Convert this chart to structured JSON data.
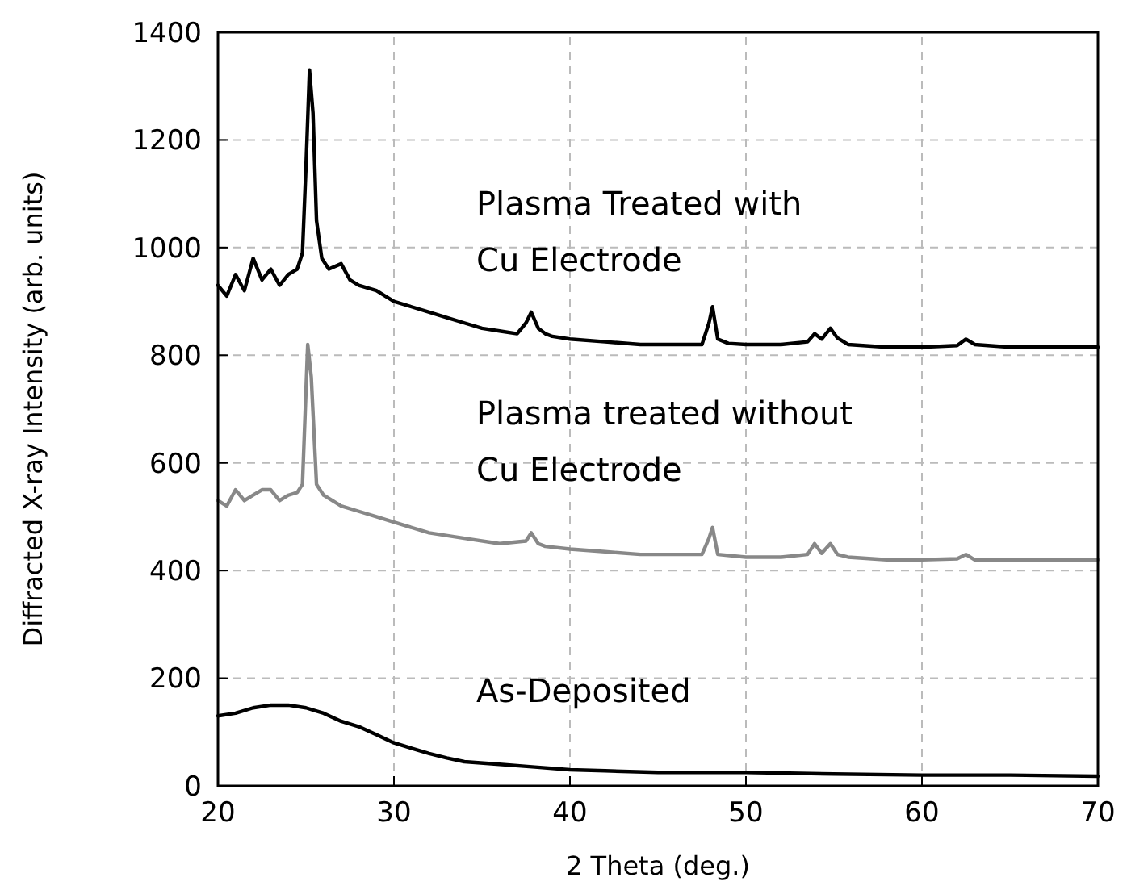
{
  "chart_data": {
    "type": "line",
    "xlabel": "2 Theta (deg.)",
    "ylabel": "Diffracted X-ray Intensity (arb. units)",
    "xlim": [
      20,
      70
    ],
    "ylim": [
      0,
      1400
    ],
    "xticks": [
      20,
      30,
      40,
      50,
      60,
      70
    ],
    "yticks": [
      0,
      200,
      400,
      600,
      800,
      1000,
      1200,
      1400
    ],
    "grid": true,
    "marker": "none",
    "line_style": "solid",
    "series": [
      {
        "name": "Plasma Treated with\nCu Electrode",
        "color": "#000000",
        "x": [
          20,
          20.5,
          21,
          21.5,
          22,
          22.5,
          23,
          23.5,
          24,
          24.5,
          24.8,
          25.0,
          25.2,
          25.4,
          25.6,
          25.9,
          26.3,
          27,
          27.5,
          28,
          29,
          30,
          31,
          32,
          33,
          34,
          35,
          36,
          37,
          37.5,
          37.8,
          38.2,
          38.6,
          39,
          40,
          42,
          44,
          46,
          47.5,
          47.9,
          48.1,
          48.4,
          49,
          50,
          52,
          53.5,
          53.9,
          54.3,
          54.8,
          55.2,
          55.8,
          58,
          60,
          62,
          62.5,
          63,
          65,
          68,
          70
        ],
        "values": [
          930,
          910,
          950,
          920,
          980,
          940,
          960,
          930,
          950,
          960,
          990,
          1150,
          1330,
          1250,
          1050,
          980,
          960,
          970,
          940,
          930,
          920,
          900,
          890,
          880,
          870,
          860,
          850,
          845,
          840,
          860,
          880,
          850,
          840,
          835,
          830,
          825,
          820,
          820,
          820,
          860,
          890,
          830,
          822,
          820,
          820,
          825,
          840,
          830,
          850,
          832,
          820,
          815,
          815,
          818,
          830,
          820,
          815,
          815,
          815
        ]
      },
      {
        "name": "Plasma treated without\nCu Electrode",
        "color": "#888888",
        "x": [
          20,
          20.5,
          21,
          21.5,
          22,
          22.5,
          23,
          23.5,
          24,
          24.5,
          24.8,
          25.1,
          25.3,
          25.6,
          26,
          27,
          28,
          29,
          30,
          32,
          34,
          36,
          37.5,
          37.8,
          38.2,
          38.6,
          40,
          42,
          44,
          46,
          47.5,
          47.9,
          48.1,
          48.4,
          50,
          52,
          53.5,
          53.9,
          54.3,
          54.8,
          55.2,
          55.8,
          58,
          60,
          62,
          62.5,
          63,
          66,
          70
        ],
        "values": [
          530,
          520,
          550,
          530,
          540,
          550,
          550,
          530,
          540,
          545,
          560,
          820,
          760,
          560,
          540,
          520,
          510,
          500,
          490,
          470,
          460,
          450,
          455,
          470,
          450,
          445,
          440,
          435,
          430,
          430,
          430,
          460,
          480,
          430,
          425,
          425,
          430,
          450,
          432,
          450,
          430,
          425,
          420,
          420,
          422,
          430,
          420,
          420,
          420
        ]
      },
      {
        "name": "As-Deposited",
        "color": "#000000",
        "x": [
          20,
          21,
          22,
          23,
          24,
          25,
          25.5,
          26,
          27,
          28,
          29,
          30,
          31,
          32,
          33,
          34,
          36,
          38,
          40,
          42,
          45,
          50,
          55,
          60,
          65,
          70
        ],
        "values": [
          130,
          135,
          145,
          150,
          150,
          145,
          140,
          135,
          120,
          110,
          95,
          80,
          70,
          60,
          52,
          45,
          40,
          35,
          30,
          28,
          25,
          25,
          22,
          20,
          20,
          18
        ]
      }
    ]
  }
}
